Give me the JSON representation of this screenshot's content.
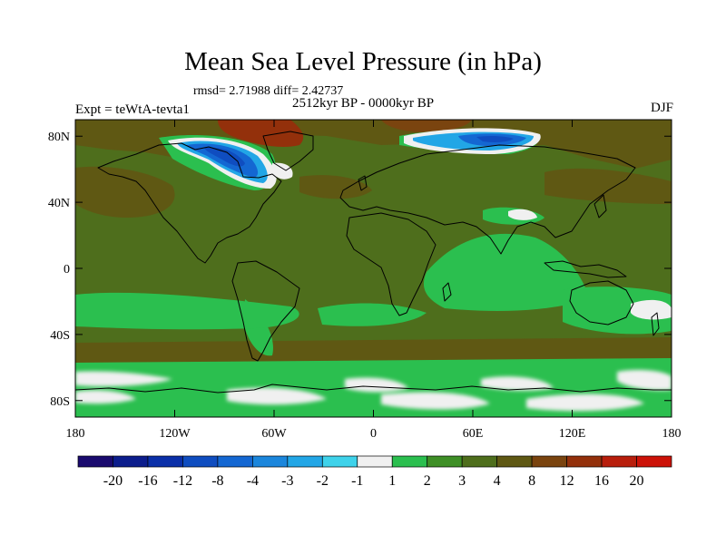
{
  "title": "Mean Sea Level Pressure (in hPa)",
  "stats": "rmsd= 2.71988  diff= 2.42737",
  "experiment": "Expt = teWtA-tevta1",
  "period": "2512kyr BP - 0000kyr BP",
  "season": "DJF",
  "chart_data": {
    "type": "heatmap",
    "title": "Mean Sea Level Pressure (in hPa)",
    "projection": "cylindrical-equidistant",
    "lat_ticks": [
      "80N",
      "40N",
      "0",
      "40S",
      "80S"
    ],
    "lat_tick_values": [
      80,
      40,
      0,
      -40,
      -80
    ],
    "lon_ticks": [
      "180",
      "120W",
      "60W",
      "0",
      "60E",
      "120E",
      "180"
    ],
    "lon_tick_values": [
      -180,
      -120,
      -60,
      0,
      60,
      120,
      180
    ],
    "lat_range": [
      -90,
      90
    ],
    "lon_range": [
      -180,
      180
    ],
    "colorbar_labels": [
      "-20",
      "-16",
      "-12",
      "-8",
      "-4",
      "-3",
      "-2",
      "-1",
      "1",
      "2",
      "3",
      "4",
      "8",
      "12",
      "16",
      "20"
    ],
    "colorbar_colors": [
      "#1a0a6e",
      "#0c1d8c",
      "#0a2fa8",
      "#0f4dc0",
      "#1467d2",
      "#1b86dc",
      "#22a6e6",
      "#3ed2ea",
      "#f0f0f0",
      "#2bbf4f",
      "#3e8f26",
      "#4e6e1c",
      "#5f5813",
      "#7a440f",
      "#93300b",
      "#b81e0c",
      "#cc1208"
    ]
  }
}
